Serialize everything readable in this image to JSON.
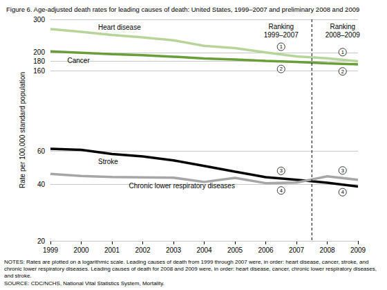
{
  "chart_data": {
    "type": "line",
    "title": "Figure 6. Age-adjusted death rates for leading causes of death: United States, 1999–2007 and preliminary 2008 and 2009",
    "ylabel": "Rate per 100,000 standard population",
    "categories": [
      "1999",
      "2000",
      "2001",
      "2002",
      "2003",
      "2004",
      "2005",
      "2006",
      "2007",
      "2008",
      "2009"
    ],
    "log": "y",
    "grid": true,
    "ylim": [
      20,
      300
    ],
    "yticks": [
      20,
      40,
      60,
      160,
      180,
      200,
      300
    ],
    "rankings": [
      {
        "label": "Ranking\n1999–2007",
        "start": "1999",
        "end": "2007"
      },
      {
        "label": "Ranking\n2008–2009",
        "start": "2008",
        "end": "2009"
      }
    ],
    "series": [
      {
        "name": "Heart disease",
        "color": "#b7d59b",
        "ranks": [
          1,
          1
        ],
        "values": [
          266.5,
          257.6,
          247.8,
          240.8,
          232.3,
          217.0,
          211.1,
          200.2,
          190.9,
          186.5,
          179.8
        ]
      },
      {
        "name": "Cancer",
        "color": "#6a9e3a",
        "ranks": [
          2,
          2
        ],
        "values": [
          202.7,
          199.6,
          196.0,
          193.5,
          190.1,
          185.8,
          183.8,
          180.7,
          178.4,
          175.3,
          173.2
        ]
      },
      {
        "name": "Stroke",
        "color": "#000000",
        "ranks": [
          3,
          4
        ],
        "values": [
          61.6,
          60.9,
          57.9,
          56.2,
          53.5,
          50.0,
          46.6,
          43.6,
          42.2,
          40.7,
          38.9
        ]
      },
      {
        "name": "Chronic lower respiratory diseases",
        "color": "#a6a6a6",
        "ranks": [
          4,
          3
        ],
        "values": [
          45.4,
          44.2,
          43.7,
          43.5,
          43.3,
          41.1,
          43.2,
          40.5,
          40.8,
          44.0,
          42.2
        ]
      }
    ],
    "notes": "NOTES: Rates are plotted on a logarithmic scale. Leading causes of death from 1999 through 2007 were, in order: heart disease, cancer, stroke, and chronic lower respiratory diseases. Leading causes of death for 2008 and 2009 were, in order: heart disease, cancer, chronic lower respiratory diseases, and stroke.",
    "source": "SOURCE: CDC/NCHS, National Vital Statistics System, Mortality."
  }
}
